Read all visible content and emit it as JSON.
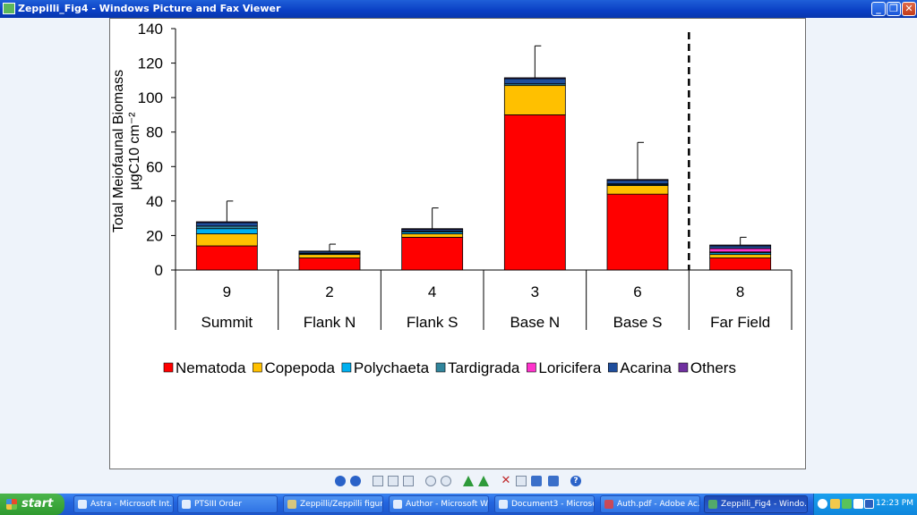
{
  "window": {
    "title": "Zeppilli_Fig4 - Windows Picture and Fax Viewer"
  },
  "chart_data": {
    "type": "bar",
    "stacked": true,
    "ylabel": "Total Meiofaunal Biomass µgC10 cm⁻²",
    "ylim": [
      0,
      140
    ],
    "yticks": [
      0,
      20,
      40,
      60,
      80,
      100,
      120,
      140
    ],
    "categories": [
      {
        "station": "9",
        "name": "Summit"
      },
      {
        "station": "2",
        "name": "Flank N"
      },
      {
        "station": "4",
        "name": "Flank S"
      },
      {
        "station": "3",
        "name": "Base N"
      },
      {
        "station": "6",
        "name": "Base S"
      },
      {
        "station": "8",
        "name": "Far Field"
      }
    ],
    "series": [
      {
        "name": "Nematoda",
        "color": "#ff0000",
        "values": [
          14,
          7,
          19,
          90,
          44,
          7
        ]
      },
      {
        "name": "Copepoda",
        "color": "#ffc000",
        "values": [
          7,
          2,
          2,
          17,
          5,
          2
        ]
      },
      {
        "name": "Polychaeta",
        "color": "#00b0f0",
        "values": [
          3,
          0.5,
          1,
          0,
          0.5,
          1
        ]
      },
      {
        "name": "Tardigrada",
        "color": "#31859c",
        "values": [
          1.5,
          0.3,
          0.5,
          1,
          0.5,
          0.5
        ]
      },
      {
        "name": "Loricifera",
        "color": "#ff33cc",
        "values": [
          0,
          0,
          0,
          0,
          0,
          2
        ]
      },
      {
        "name": "Acarina",
        "color": "#1f4e9c",
        "values": [
          2,
          1,
          1,
          3,
          2,
          1.5
        ]
      },
      {
        "name": "Others",
        "color": "#7030a0",
        "values": [
          0.5,
          0.2,
          0.5,
          0.5,
          0.5,
          0.5
        ]
      }
    ],
    "error_bars": [
      40,
      15,
      36,
      130,
      74,
      19
    ],
    "separator_after_category": 4,
    "legend_position": "bottom",
    "grid": false
  },
  "toolbar": {
    "icons": [
      "previous-image-icon",
      "next-image-icon",
      "best-fit-icon",
      "actual-size-icon",
      "slideshow-icon",
      "zoom-in-icon",
      "zoom-out-icon",
      "rotate-clockwise-icon",
      "rotate-counterclockwise-icon",
      "delete-icon",
      "print-icon",
      "save-icon",
      "edit-icon",
      "help-icon"
    ]
  },
  "taskbar": {
    "start_label": "start",
    "tasks": [
      {
        "label": "Astra - Microsoft Int...",
        "active": false
      },
      {
        "label": "PTSIII Order",
        "active": false
      },
      {
        "label": "Zeppilli/Zeppilli figure...",
        "active": false
      },
      {
        "label": "Author - Microsoft W...",
        "active": false
      },
      {
        "label": "Document3 - Microso...",
        "active": false
      },
      {
        "label": "Auth.pdf - Adobe Ac...",
        "active": false
      },
      {
        "label": "Zeppilli_Fig4 - Windo...",
        "active": true
      }
    ],
    "clock": "12:23 PM"
  }
}
